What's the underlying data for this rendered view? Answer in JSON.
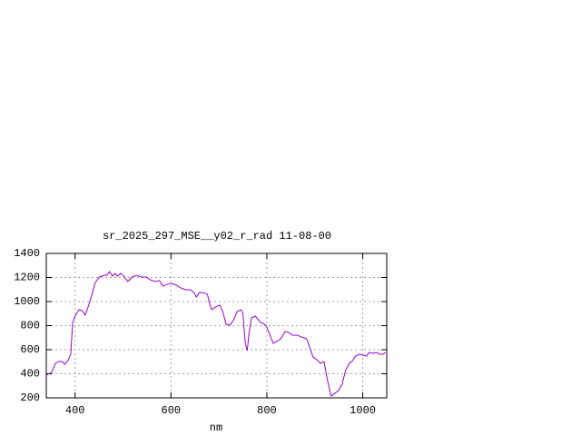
{
  "chart_data": {
    "type": "line",
    "title": "sr_2025_297_MSE__y02_r_rad 11-08-00",
    "x_label": "nm",
    "x": [
      340,
      351,
      359,
      366,
      374,
      378,
      385,
      391,
      395,
      400,
      408,
      415,
      421,
      429,
      436,
      442,
      451,
      461,
      466,
      472,
      478,
      483,
      489,
      495,
      502,
      510,
      519,
      528,
      538,
      548,
      557,
      566,
      576,
      583,
      593,
      602,
      611,
      621,
      630,
      640,
      648,
      653,
      659,
      668,
      676,
      681,
      685,
      693,
      702,
      708,
      715,
      723,
      730,
      738,
      746,
      750,
      755,
      759,
      763,
      768,
      776,
      787,
      798,
      806,
      813,
      821,
      829,
      838,
      846,
      853,
      863,
      872,
      883,
      889,
      896,
      904,
      912,
      919,
      927,
      934,
      942,
      949,
      957,
      964,
      972,
      979,
      985,
      993,
      1000,
      1008,
      1013,
      1021,
      1028,
      1036,
      1042,
      1047
    ],
    "series": [
      {
        "color": "#9400d3",
        "values": [
          389,
          411,
          487,
          502,
          502,
          479,
          509,
          562,
          826,
          879,
          932,
          925,
          887,
          977,
          1068,
          1158,
          1204,
          1219,
          1219,
          1249,
          1211,
          1234,
          1211,
          1234,
          1211,
          1166,
          1204,
          1219,
          1204,
          1204,
          1181,
          1166,
          1174,
          1128,
          1143,
          1151,
          1136,
          1113,
          1098,
          1098,
          1075,
          1038,
          1075,
          1075,
          1060,
          977,
          932,
          955,
          970,
          917,
          811,
          804,
          842,
          917,
          932,
          902,
          653,
          592,
          743,
          864,
          879,
          826,
          804,
          728,
          653,
          668,
          691,
          751,
          743,
          721,
          721,
          706,
          691,
          623,
          540,
          517,
          487,
          502,
          336,
          215,
          238,
          260,
          313,
          426,
          487,
          509,
          547,
          562,
          555,
          547,
          577,
          570,
          577,
          562,
          562,
          577
        ]
      }
    ],
    "xlim": [
      340,
      1050
    ],
    "ylim": [
      200,
      1400
    ],
    "xticks": [
      400,
      600,
      800,
      1000
    ],
    "yticks": [
      200,
      400,
      600,
      800,
      1000,
      1200,
      1400
    ],
    "grid": true
  }
}
